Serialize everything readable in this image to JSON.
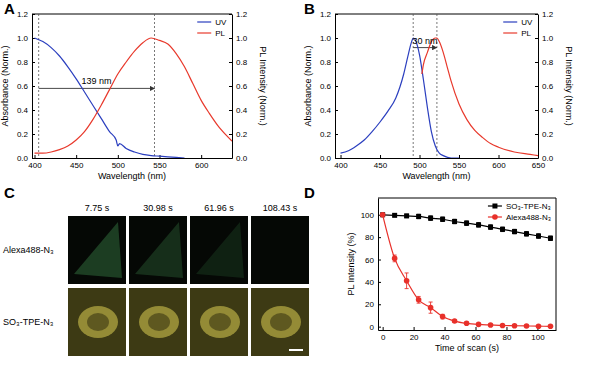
{
  "chart_data": [
    {
      "type": "line",
      "panel_label": "A",
      "x_label": "Wavelength (nm)",
      "y_label": "Absorbance (Norm.)",
      "y2_label": "PL Intensity (Norm.)",
      "xlim": [
        397,
        637
      ],
      "xticks": [
        400,
        450,
        500,
        550,
        600
      ],
      "ylim": [
        0,
        1.2
      ],
      "yticks": [
        {
          "value": 0,
          "label": "0.0"
        },
        0.2,
        0.4,
        0.6,
        0.8,
        {
          "value": 1,
          "label": "1.0"
        },
        1.2
      ],
      "y2lim": [
        0,
        1.2
      ],
      "y2ticks": [
        {
          "value": 0,
          "label": "0.0"
        },
        0.2,
        0.4,
        0.6,
        0.8,
        {
          "value": 1,
          "label": "1.0"
        },
        1.2
      ],
      "legend": "top-right",
      "annotations": [
        {
          "text": "139 nm",
          "x": [
            405,
            544
          ],
          "y": 0.58
        }
      ],
      "series": [
        {
          "name": "UV",
          "color": "#2b3fbf",
          "x": [
            400,
            410,
            420,
            430,
            440,
            450,
            460,
            470,
            480,
            490,
            498,
            500,
            502,
            510,
            520,
            530,
            540,
            550,
            560,
            570,
            580
          ],
          "values": [
            1.0,
            0.97,
            0.92,
            0.85,
            0.76,
            0.66,
            0.55,
            0.44,
            0.33,
            0.22,
            0.15,
            0.1,
            0.12,
            0.08,
            0.05,
            0.03,
            0.02,
            0.015,
            0.01,
            0.005,
            0.0
          ]
        },
        {
          "name": "PL",
          "color": "#e8392c",
          "axis": "y2",
          "x": [
            400,
            410,
            420,
            430,
            440,
            450,
            460,
            470,
            480,
            490,
            500,
            510,
            520,
            530,
            540,
            550,
            560,
            570,
            580,
            590,
            600,
            610,
            620,
            630,
            637
          ],
          "values": [
            0.04,
            0.04,
            0.05,
            0.07,
            0.1,
            0.15,
            0.22,
            0.32,
            0.44,
            0.57,
            0.7,
            0.8,
            0.89,
            0.96,
            1.0,
            0.98,
            0.95,
            0.87,
            0.76,
            0.62,
            0.48,
            0.37,
            0.27,
            0.19,
            0.14
          ]
        }
      ]
    },
    {
      "type": "line",
      "panel_label": "B",
      "x_label": "Wavelength (nm)",
      "y_label": "Absorbance (Norm.)",
      "y2_label": "PL Intensity (Norm.)",
      "xlim": [
        393,
        650
      ],
      "xticks": [
        400,
        450,
        500,
        550,
        600,
        650
      ],
      "ylim": [
        0,
        1.2
      ],
      "yticks": [
        {
          "value": 0,
          "label": "0.0"
        },
        0.2,
        0.4,
        0.6,
        0.8,
        {
          "value": 1,
          "label": "1.0"
        },
        1.2
      ],
      "y2lim": [
        0,
        1.2
      ],
      "y2ticks": [
        {
          "value": 0,
          "label": "0.0"
        },
        0.2,
        0.4,
        0.6,
        0.8,
        {
          "value": 1,
          "label": "1.0"
        },
        1.2
      ],
      "legend": "top-right",
      "annotations": [
        {
          "text": "30 nm",
          "x": [
            492,
            522
          ],
          "y": 0.92
        }
      ],
      "series": [
        {
          "name": "UV",
          "color": "#2b3fbf",
          "x": [
            400,
            410,
            420,
            430,
            440,
            450,
            460,
            470,
            480,
            485,
            490,
            492,
            495,
            500,
            505,
            510,
            515,
            520,
            525,
            530,
            540,
            550
          ],
          "values": [
            0.04,
            0.06,
            0.1,
            0.15,
            0.22,
            0.3,
            0.39,
            0.5,
            0.7,
            0.84,
            0.97,
            1.0,
            0.98,
            0.86,
            0.65,
            0.42,
            0.22,
            0.1,
            0.04,
            0.02,
            0.0,
            0.0
          ]
        },
        {
          "name": "PL",
          "color": "#e8392c",
          "axis": "y2",
          "x": [
            503,
            505,
            510,
            515,
            520,
            522,
            525,
            530,
            535,
            540,
            550,
            560,
            570,
            580,
            590,
            600,
            620,
            640,
            650
          ],
          "values": [
            0.7,
            0.78,
            0.88,
            0.97,
            1.0,
            1.0,
            0.97,
            0.88,
            0.76,
            0.64,
            0.45,
            0.32,
            0.23,
            0.17,
            0.12,
            0.09,
            0.05,
            0.03,
            0.02
          ]
        }
      ]
    },
    {
      "type": "image_grid",
      "panel_label": "C",
      "columns": [
        "7.75 s",
        "30.98 s",
        "61.96 s",
        "108.43 s"
      ],
      "rows": [
        "Alexa488-N₃",
        "SO₃-TPE-N₃"
      ]
    },
    {
      "type": "line",
      "panel_label": "D",
      "x_label": "Time of scan (s)",
      "y_label": "PL Intensity (%)",
      "xlim": [
        -3,
        112
      ],
      "xticks": [
        0,
        20,
        40,
        60,
        80,
        100
      ],
      "ylim": [
        -3,
        115
      ],
      "yticks": [
        0,
        20,
        40,
        60,
        80,
        100
      ],
      "legend": "top-right",
      "series": [
        {
          "name": "SO₃-TPE-N₃",
          "color": "#000000",
          "marker": "square",
          "x": [
            0,
            7.75,
            15.49,
            23.24,
            30.98,
            38.73,
            46.47,
            54.22,
            61.96,
            69.71,
            77.45,
            85.2,
            92.94,
            100.69,
            108.43
          ],
          "values": [
            100,
            99.5,
            99,
            98.5,
            97,
            96,
            94,
            92.5,
            91,
            89,
            87,
            85,
            83,
            81,
            79
          ],
          "errors": [
            0,
            1,
            1.5,
            2,
            2,
            2,
            2,
            2,
            2,
            2,
            2,
            2,
            2,
            2,
            2
          ]
        },
        {
          "name": "Alexa488-N₃",
          "color": "#e8302a",
          "marker": "circle",
          "x": [
            0,
            7.75,
            15.49,
            23.24,
            30.98,
            38.73,
            46.47,
            54.22,
            61.96,
            69.71,
            77.45,
            85.2,
            92.94,
            100.69,
            108.43
          ],
          "values": [
            100,
            61,
            41,
            24,
            17,
            9,
            5,
            3,
            2,
            1.5,
            1,
            0.8,
            0.6,
            0.4,
            0.3
          ],
          "errors": [
            0,
            3,
            7,
            3,
            5,
            2,
            1,
            1,
            0.5,
            0.5,
            0.5,
            0.5,
            0.5,
            0.5,
            0.5
          ]
        }
      ]
    }
  ]
}
